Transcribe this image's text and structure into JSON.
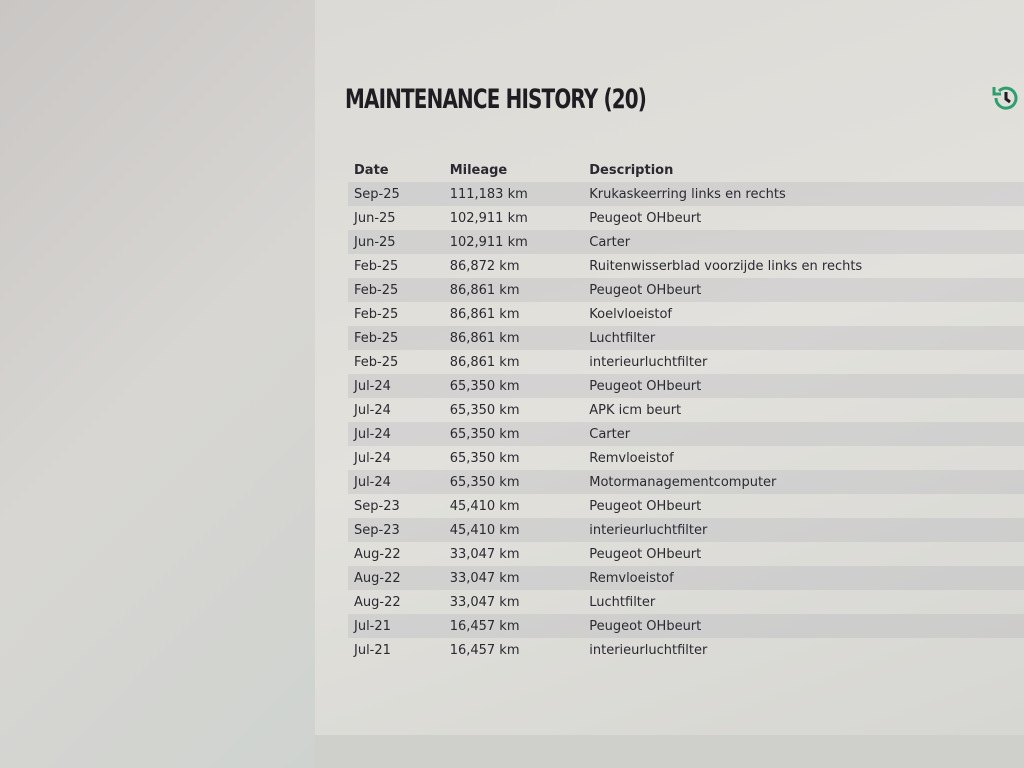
{
  "header": {
    "title": "MAINTENANCE HISTORY (20)",
    "history_icon": "history-icon",
    "accent": "#2e9e6e"
  },
  "table": {
    "columns": [
      "Date",
      "Mileage",
      "Description"
    ],
    "rows": [
      [
        "Sep-25",
        "111,183 km",
        "Krukaskeerring links en rechts"
      ],
      [
        "Jun-25",
        "102,911 km",
        "Peugeot OHbeurt"
      ],
      [
        "Jun-25",
        "102,911 km",
        "Carter"
      ],
      [
        "Feb-25",
        "86,872 km",
        "Ruitenwisserblad voorzijde links en rechts"
      ],
      [
        "Feb-25",
        "86,861 km",
        "Peugeot OHbeurt"
      ],
      [
        "Feb-25",
        "86,861 km",
        "Koelvloeistof"
      ],
      [
        "Feb-25",
        "86,861 km",
        "Luchtfilter"
      ],
      [
        "Feb-25",
        "86,861 km",
        "interieurluchtfilter"
      ],
      [
        "Jul-24",
        "65,350 km",
        "Peugeot OHbeurt"
      ],
      [
        "Jul-24",
        "65,350 km",
        "APK icm beurt"
      ],
      [
        "Jul-24",
        "65,350 km",
        "Carter"
      ],
      [
        "Jul-24",
        "65,350 km",
        "Remvloeistof"
      ],
      [
        "Jul-24",
        "65,350 km",
        "Motormanagementcomputer"
      ],
      [
        "Sep-23",
        "45,410 km",
        "Peugeot OHbeurt"
      ],
      [
        "Sep-23",
        "45,410 km",
        "interieurluchtfilter"
      ],
      [
        "Aug-22",
        "33,047 km",
        "Peugeot OHbeurt"
      ],
      [
        "Aug-22",
        "33,047 km",
        "Remvloeistof"
      ],
      [
        "Aug-22",
        "33,047 km",
        "Luchtfilter"
      ],
      [
        "Jul-21",
        "16,457 km",
        "Peugeot OHbeurt"
      ],
      [
        "Jul-21",
        "16,457 km",
        "interieurluchtfilter"
      ]
    ]
  }
}
